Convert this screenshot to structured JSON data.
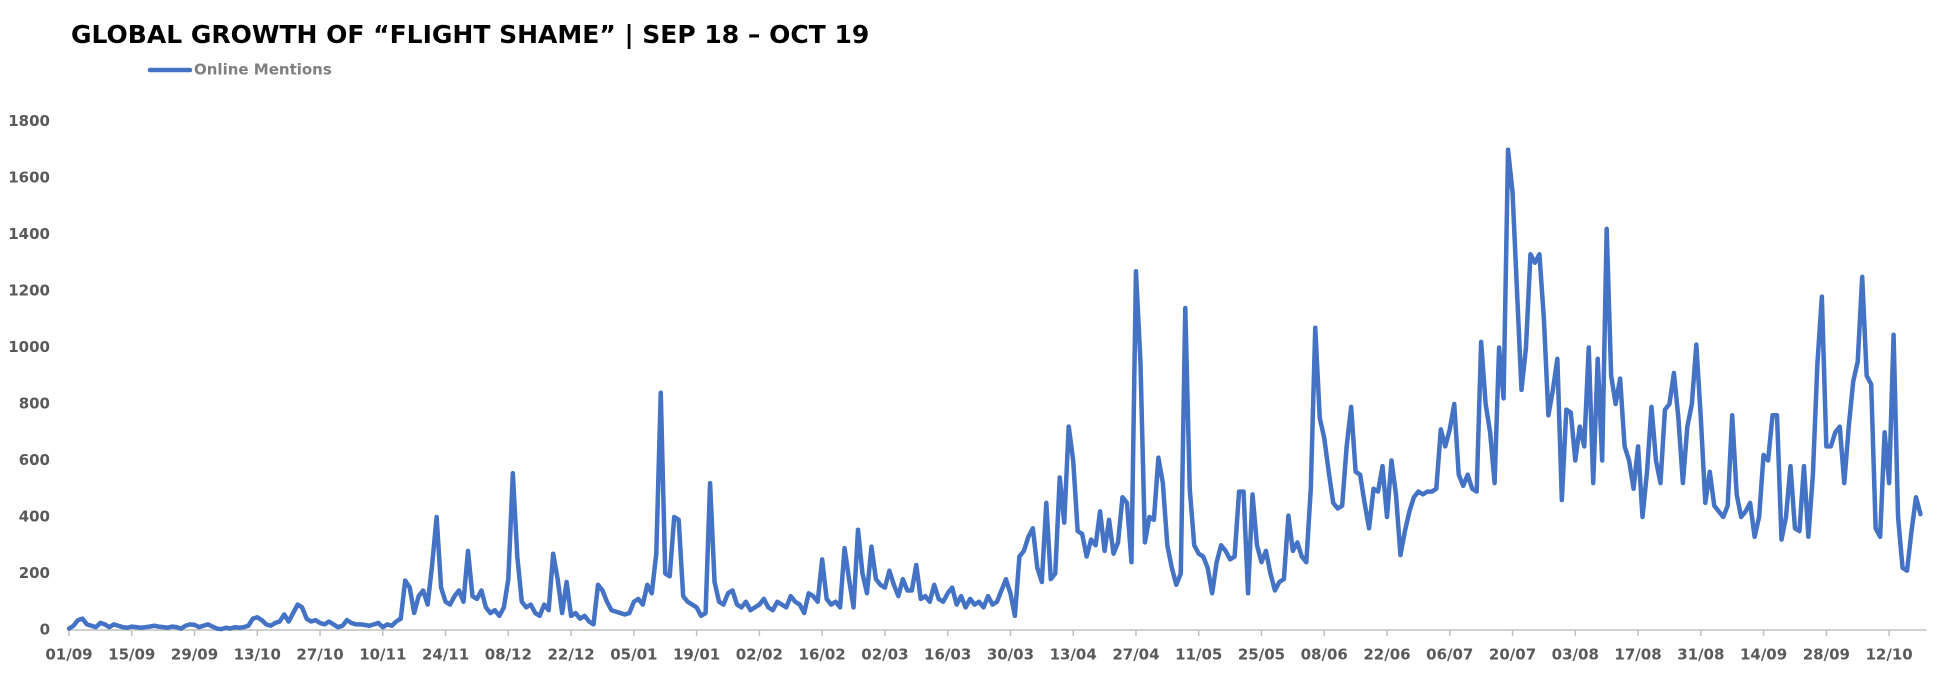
{
  "chart_data": {
    "type": "line",
    "title": "GLOBAL GROWTH OF “FLIGHT SHAME” | SEP 18 – OCT 19",
    "categories": [
      "01/09",
      null,
      null,
      null,
      null,
      null,
      null,
      null,
      null,
      null,
      null,
      null,
      null,
      null,
      "15/09",
      null,
      null,
      null,
      null,
      null,
      null,
      null,
      null,
      null,
      null,
      null,
      null,
      null,
      "29/09",
      null,
      null,
      null,
      null,
      null,
      null,
      null,
      null,
      null,
      null,
      null,
      null,
      null,
      "13/10",
      null,
      null,
      null,
      null,
      null,
      null,
      null,
      null,
      null,
      null,
      null,
      null,
      null,
      "27/10",
      null,
      null,
      null,
      null,
      null,
      null,
      null,
      null,
      null,
      null,
      null,
      null,
      null,
      "10/11",
      null,
      null,
      null,
      null,
      null,
      null,
      null,
      null,
      null,
      null,
      null,
      null,
      null,
      "24/11",
      null,
      null,
      null,
      null,
      null,
      null,
      null,
      null,
      null,
      null,
      null,
      null,
      null,
      "08/12",
      null,
      null,
      null,
      null,
      null,
      null,
      null,
      null,
      null,
      null,
      null,
      null,
      null,
      "22/12",
      null,
      null,
      null,
      null,
      null,
      null,
      null,
      null,
      null,
      null,
      null,
      null,
      null,
      "05/01",
      null,
      null,
      null,
      null,
      null,
      null,
      null,
      null,
      null,
      null,
      null,
      null,
      null,
      "19/01",
      null,
      null,
      null,
      null,
      null,
      null,
      null,
      null,
      null,
      null,
      null,
      null,
      null,
      "02/02",
      null,
      null,
      null,
      null,
      null,
      null,
      null,
      null,
      null,
      null,
      null,
      null,
      null,
      "16/02",
      null,
      null,
      null,
      null,
      null,
      null,
      null,
      null,
      null,
      null,
      null,
      null,
      null,
      "02/03",
      null,
      null,
      null,
      null,
      null,
      null,
      null,
      null,
      null,
      null,
      null,
      null,
      null,
      "16/03",
      null,
      null,
      null,
      null,
      null,
      null,
      null,
      null,
      null,
      null,
      null,
      null,
      null,
      "30/03",
      null,
      null,
      null,
      null,
      null,
      null,
      null,
      null,
      null,
      null,
      null,
      null,
      null,
      "13/04",
      null,
      null,
      null,
      null,
      null,
      null,
      null,
      null,
      null,
      null,
      null,
      null,
      null,
      "27/04",
      null,
      null,
      null,
      null,
      null,
      null,
      null,
      null,
      null,
      null,
      null,
      null,
      null,
      "11/05",
      null,
      null,
      null,
      null,
      null,
      null,
      null,
      null,
      null,
      null,
      null,
      null,
      null,
      "25/05",
      null,
      null,
      null,
      null,
      null,
      null,
      null,
      null,
      null,
      null,
      null,
      null,
      null,
      "08/06",
      null,
      null,
      null,
      null,
      null,
      null,
      null,
      null,
      null,
      null,
      null,
      null,
      null,
      "22/06",
      null,
      null,
      null,
      null,
      null,
      null,
      null,
      null,
      null,
      null,
      null,
      null,
      null,
      "06/07",
      null,
      null,
      null,
      null,
      null,
      null,
      null,
      null,
      null,
      null,
      null,
      null,
      null,
      "20/07",
      null,
      null,
      null,
      null,
      null,
      null,
      null,
      null,
      null,
      null,
      null,
      null,
      null,
      "03/08",
      null,
      null,
      null,
      null,
      null,
      null,
      null,
      null,
      null,
      null,
      null,
      null,
      null,
      "17/08",
      null,
      null,
      null,
      null,
      null,
      null,
      null,
      null,
      null,
      null,
      null,
      null,
      null,
      "31/08",
      null,
      null,
      null,
      null,
      null,
      null,
      null,
      null,
      null,
      null,
      null,
      null,
      null,
      "14/09",
      null,
      null,
      null,
      null,
      null,
      null,
      null,
      null,
      null,
      null,
      null,
      null,
      null,
      "28/09",
      null,
      null,
      null,
      null,
      null,
      null,
      null,
      null,
      null,
      null,
      null,
      null,
      null,
      "12/10",
      null,
      null,
      null,
      null,
      null,
      null,
      null
    ],
    "series": [
      {
        "name": "Online Mentions",
        "color": "#4472c4",
        "values": [
          5,
          15,
          35,
          40,
          20,
          15,
          10,
          25,
          20,
          10,
          20,
          15,
          10,
          8,
          12,
          10,
          8,
          10,
          12,
          15,
          12,
          10,
          8,
          12,
          10,
          5,
          15,
          20,
          18,
          10,
          15,
          20,
          12,
          5,
          3,
          8,
          5,
          10,
          8,
          10,
          15,
          40,
          45,
          35,
          20,
          15,
          25,
          30,
          55,
          30,
          60,
          90,
          80,
          40,
          30,
          35,
          25,
          20,
          30,
          20,
          10,
          15,
          35,
          25,
          20,
          20,
          18,
          15,
          20,
          25,
          10,
          20,
          15,
          30,
          40,
          175,
          150,
          60,
          120,
          140,
          90,
          230,
          400,
          150,
          100,
          90,
          120,
          140,
          100,
          280,
          120,
          110,
          140,
          80,
          60,
          70,
          50,
          80,
          180,
          555,
          260,
          100,
          80,
          90,
          60,
          50,
          90,
          70,
          270,
          180,
          60,
          170,
          50,
          60,
          40,
          50,
          30,
          20,
          160,
          140,
          100,
          70,
          65,
          60,
          55,
          60,
          100,
          110,
          90,
          160,
          130,
          270,
          840,
          200,
          190,
          400,
          390,
          120,
          100,
          90,
          80,
          50,
          60,
          520,
          170,
          100,
          90,
          130,
          140,
          90,
          80,
          100,
          70,
          80,
          90,
          110,
          80,
          70,
          100,
          90,
          80,
          120,
          100,
          90,
          60,
          130,
          120,
          100,
          250,
          110,
          90,
          100,
          80,
          290,
          180,
          80,
          355,
          200,
          130,
          295,
          180,
          160,
          150,
          210,
          160,
          120,
          180,
          140,
          140,
          230,
          110,
          120,
          100,
          160,
          110,
          100,
          130,
          150,
          90,
          120,
          80,
          110,
          90,
          100,
          80,
          120,
          90,
          100,
          140,
          180,
          130,
          50,
          260,
          280,
          330,
          360,
          220,
          170,
          450,
          180,
          200,
          540,
          380,
          720,
          600,
          350,
          340,
          260,
          320,
          300,
          420,
          280,
          390,
          270,
          310,
          470,
          450,
          240,
          1270,
          950,
          310,
          400,
          390,
          610,
          520,
          300,
          220,
          160,
          200,
          1140,
          500,
          300,
          270,
          260,
          220,
          130,
          240,
          300,
          280,
          250,
          260,
          490,
          490,
          130,
          480,
          300,
          240,
          280,
          200,
          140,
          170,
          180,
          405,
          280,
          310,
          260,
          240,
          500,
          1070,
          750,
          680,
          560,
          450,
          430,
          440,
          650,
          790,
          560,
          550,
          450,
          360,
          500,
          490,
          580,
          400,
          600,
          480,
          265,
          350,
          420,
          470,
          490,
          480,
          490,
          490,
          500,
          710,
          650,
          710,
          800,
          550,
          510,
          550,
          500,
          490,
          1020,
          800,
          700,
          520,
          1000,
          820,
          1700,
          1550,
          1200,
          850,
          1000,
          1330,
          1300,
          1330,
          1100,
          760,
          850,
          960,
          460,
          780,
          770,
          600,
          720,
          650,
          1000,
          520,
          960,
          600,
          1420,
          900,
          800,
          890,
          650,
          600,
          500,
          650,
          400,
          560,
          790,
          600,
          520,
          780,
          800,
          910,
          750,
          520,
          720,
          800,
          1010,
          750,
          450,
          560,
          440,
          420,
          400,
          440,
          760,
          480,
          400,
          420,
          450,
          330,
          400,
          620,
          600,
          760,
          760,
          320,
          400,
          580,
          360,
          350,
          580,
          330,
          550,
          940,
          1180,
          650,
          650,
          700,
          720,
          520,
          720,
          880,
          950,
          1250,
          900,
          870,
          360,
          330,
          700,
          520,
          1045,
          400,
          220,
          210,
          350,
          470,
          410
        ]
      }
    ],
    "ylim": [
      0,
      1800
    ],
    "yticks": [
      0,
      200,
      400,
      600,
      800,
      1000,
      1200,
      1400,
      1600,
      1800
    ],
    "grid": false
  }
}
